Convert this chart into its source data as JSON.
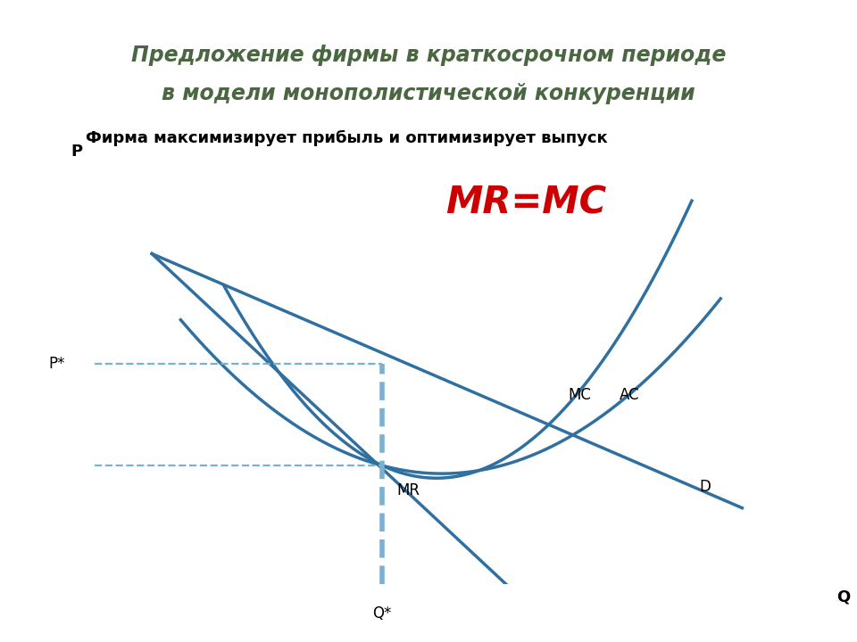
{
  "title_line1": "Предложение фирмы в краткосрочном периоде",
  "title_line2": "в модели монополистической конкуренции",
  "subtitle": "Фирма максимизирует прибыль и оптимизирует выпуск",
  "mr_mc_label": "MR=MC",
  "title_bg_color": "#e8eddc",
  "title_text_color": "#4a6741",
  "subtitle_color": "#000000",
  "mr_mc_color": "#cc0000",
  "curve_color": "#3070a0",
  "axis_color": "#000000",
  "dashed_color": "#7ab0d0",
  "background_color": "#ffffff",
  "xlabel": "Q",
  "ylabel": "P",
  "p_star_label": "P*",
  "q_star_label": "Q*",
  "mc_label": "MC",
  "ac_label": "AC",
  "d_label": "D",
  "mr_label": "MR"
}
